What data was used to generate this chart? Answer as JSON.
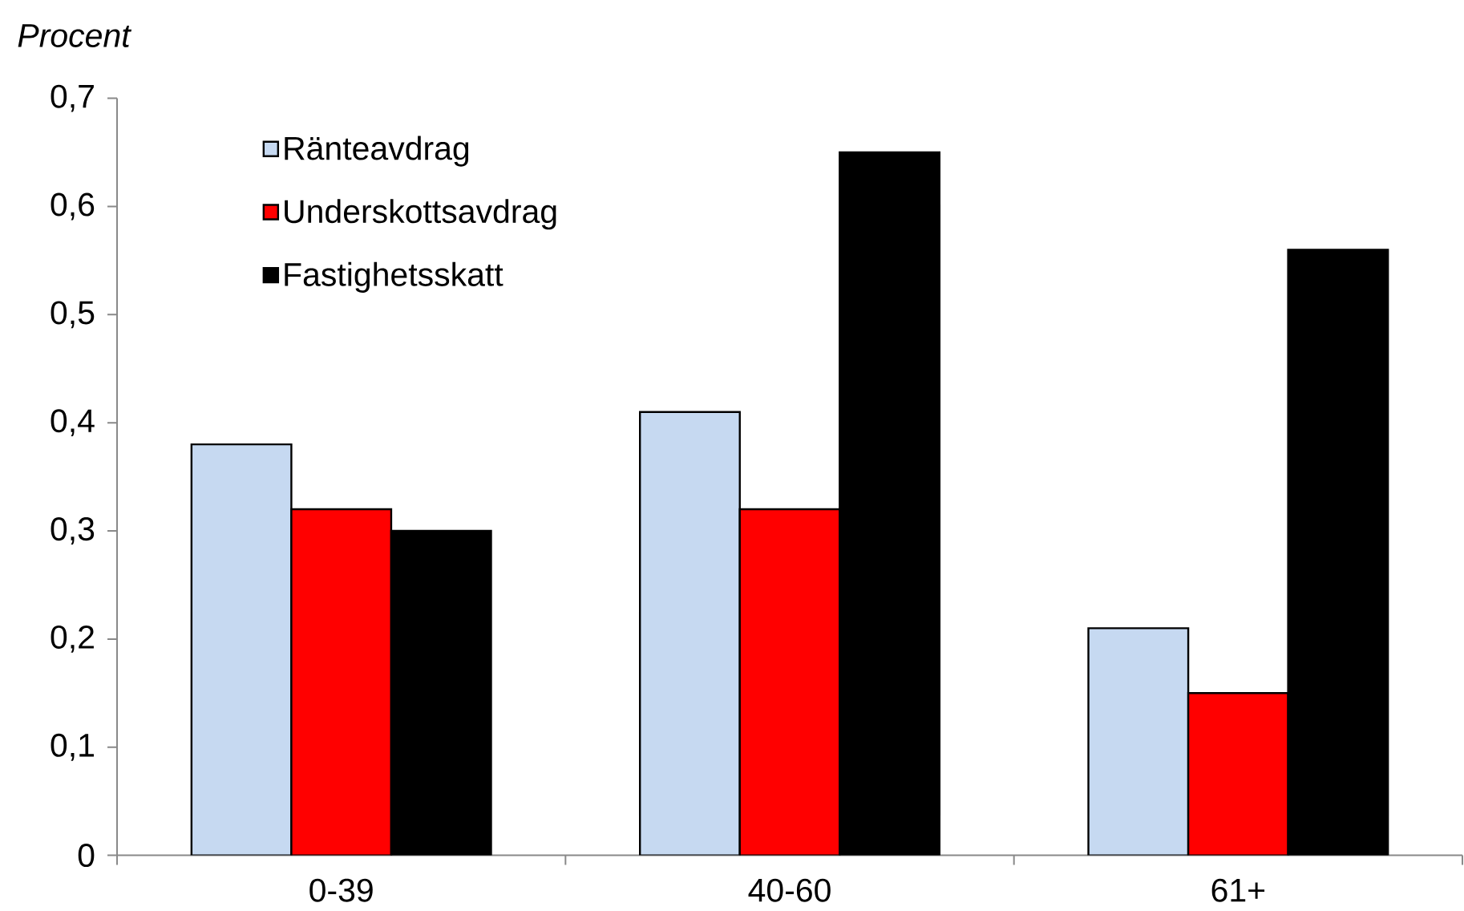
{
  "chart_data": {
    "type": "bar",
    "ylabel": "Procent",
    "categories": [
      "0-39",
      "40-60",
      "61+"
    ],
    "series": [
      {
        "name": "Ränteavdrag",
        "color": "#c6d9f1",
        "values": [
          0.38,
          0.41,
          0.21
        ]
      },
      {
        "name": "Underskottsavdrag",
        "color": "#ff0000",
        "values": [
          0.32,
          0.32,
          0.15
        ]
      },
      {
        "name": "Fastighetsskatt",
        "color": "#000000",
        "values": [
          0.3,
          0.65,
          0.56
        ]
      }
    ],
    "ylim": [
      0,
      0.7
    ],
    "yticks": [
      0,
      {
        "value": 0.1,
        "label": "0,1"
      },
      {
        "value": 0.2,
        "label": "0,2"
      },
      {
        "value": 0.3,
        "label": "0,3"
      },
      {
        "value": 0.4,
        "label": "0,4"
      },
      {
        "value": 0.5,
        "label": "0,5"
      },
      {
        "value": 0.6,
        "label": "0,6"
      },
      {
        "value": 0.7,
        "label": "0,7"
      }
    ],
    "legend": "top left"
  }
}
